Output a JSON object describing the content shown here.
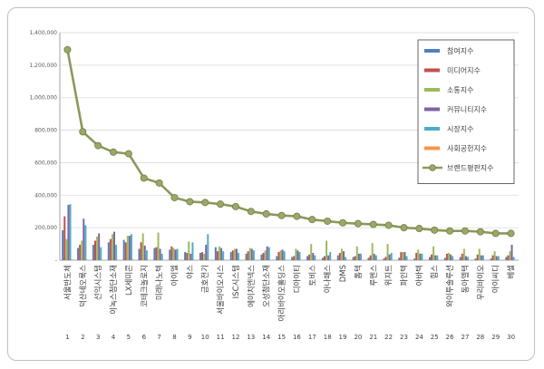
{
  "chart_data": {
    "type": "bar",
    "categories": [
      "서울반도체",
      "덕산네오룩스",
      "선익시스템",
      "이녹스첨단소재",
      "LX세미콘",
      "코테크놀로지",
      "미래나노텍",
      "아이엘",
      "야스",
      "금호전기",
      "서울바이오시스",
      "ISC시스템",
      "에이치엔넥스",
      "오성첨단소재",
      "아리바이오홀딩스",
      "디아이티",
      "토비스",
      "아나패스",
      "DMS",
      "톱텍",
      "루멘스",
      "위지트",
      "파인텍",
      "아바텍",
      "힘스",
      "와이투솔루션",
      "동아엘텍",
      "우리바이오",
      "아이씨디",
      "베셀"
    ],
    "index_labels": [
      "1",
      "2",
      "3",
      "4",
      "5",
      "6",
      "7",
      "8",
      "9",
      "10",
      "11",
      "12",
      "13",
      "14",
      "15",
      "16",
      "17",
      "18",
      "19",
      "20",
      "21",
      "22",
      "23",
      "24",
      "25",
      "26",
      "27",
      "28",
      "29",
      "30"
    ],
    "ylim": [
      0,
      1400000
    ],
    "yticks": [
      "-",
      "200,000",
      "400,000",
      "600,000",
      "800,000",
      "1,000,000",
      "1,200,000",
      "1,400,000"
    ],
    "grid": true,
    "legend_position": "right",
    "series": [
      {
        "name": "참여지수",
        "kind": "bar",
        "color": "#4f81bd",
        "values": [
          185000,
          75000,
          95000,
          110000,
          125000,
          70000,
          75000,
          65000,
          50000,
          45000,
          80000,
          50000,
          40000,
          35000,
          25000,
          20000,
          25000,
          15000,
          30000,
          20000,
          15000,
          10000,
          15000,
          10000,
          20000,
          15000,
          20000,
          10000,
          10000,
          20000
        ]
      },
      {
        "name": "미디어지수",
        "kind": "bar",
        "color": "#c0504d",
        "values": [
          270000,
          95000,
          120000,
          130000,
          110000,
          110000,
          80000,
          85000,
          45000,
          50000,
          55000,
          60000,
          55000,
          45000,
          50000,
          25000,
          35000,
          25000,
          45000,
          25000,
          30000,
          20000,
          50000,
          45000,
          35000,
          40000,
          40000,
          35000,
          30000,
          30000
        ]
      },
      {
        "name": "소통지수",
        "kind": "bar",
        "color": "#9bbb59",
        "values": [
          130000,
          120000,
          145000,
          160000,
          150000,
          165000,
          170000,
          75000,
          115000,
          40000,
          85000,
          70000,
          75000,
          60000,
          60000,
          70000,
          100000,
          120000,
          70000,
          85000,
          105000,
          100000,
          50000,
          65000,
          85000,
          45000,
          70000,
          70000,
          55000,
          55000
        ]
      },
      {
        "name": "커뮤니티지수",
        "kind": "bar",
        "color": "#8064a2",
        "values": [
          340000,
          255000,
          165000,
          175000,
          150000,
          90000,
          70000,
          65000,
          40000,
          95000,
          75000,
          70000,
          70000,
          85000,
          65000,
          60000,
          45000,
          30000,
          55000,
          40000,
          40000,
          35000,
          50000,
          40000,
          30000,
          35000,
          25000,
          30000,
          25000,
          95000
        ]
      },
      {
        "name": "시장지수",
        "kind": "bar",
        "color": "#4bacc6",
        "values": [
          345000,
          215000,
          80000,
          95000,
          160000,
          60000,
          40000,
          70000,
          110000,
          160000,
          55000,
          45000,
          60000,
          80000,
          55000,
          50000,
          30000,
          50000,
          20000,
          40000,
          30000,
          45000,
          25000,
          40000,
          30000,
          25000,
          20000,
          30000,
          25000,
          20000
        ]
      },
      {
        "name": "사회공헌지수",
        "kind": "bar",
        "color": "#f79646",
        "values": [
          5000,
          4000,
          3000,
          3000,
          5000,
          2000,
          2000,
          3000,
          2000,
          2000,
          3000,
          2000,
          2000,
          2000,
          2000,
          2000,
          2000,
          1000,
          2000,
          2000,
          1000,
          1000,
          2000,
          1000,
          1000,
          1000,
          1000,
          2000,
          1000,
          1000
        ]
      },
      {
        "name": "브랜드평판지수",
        "kind": "line",
        "color": "#8a9a5b",
        "values": [
          1295000,
          790000,
          705000,
          665000,
          655000,
          505000,
          475000,
          385000,
          360000,
          355000,
          345000,
          330000,
          300000,
          285000,
          275000,
          270000,
          250000,
          240000,
          230000,
          225000,
          220000,
          215000,
          200000,
          195000,
          185000,
          180000,
          180000,
          175000,
          165000,
          165000
        ]
      }
    ]
  }
}
